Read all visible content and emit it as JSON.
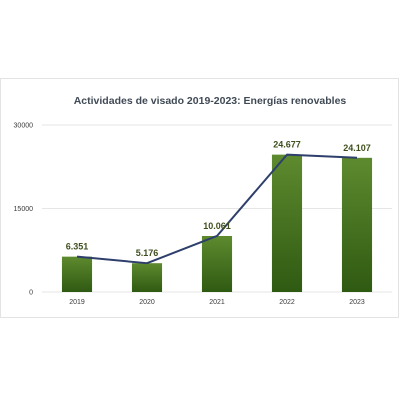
{
  "chart_data": {
    "type": "bar",
    "title": "Actividades de visado 2019-2023: Energías renovables",
    "categories": [
      "2019",
      "2020",
      "2021",
      "2022",
      "2023"
    ],
    "values": [
      6351,
      5176,
      10061,
      24677,
      24107
    ],
    "value_labels": [
      "6.351",
      "5.176",
      "10.061",
      "24.677",
      "24.107"
    ],
    "overlay_line": true,
    "ylim": [
      0,
      30000
    ],
    "yticks": [
      0,
      15000,
      30000
    ],
    "ytick_labels": [
      "0",
      "15000",
      "30000"
    ],
    "grid": true,
    "colors": {
      "bar_top": "#5e8a2f",
      "bar_bottom": "#2f5a12",
      "line": "#2e3f6b",
      "grid": "#e6e6e6"
    }
  }
}
